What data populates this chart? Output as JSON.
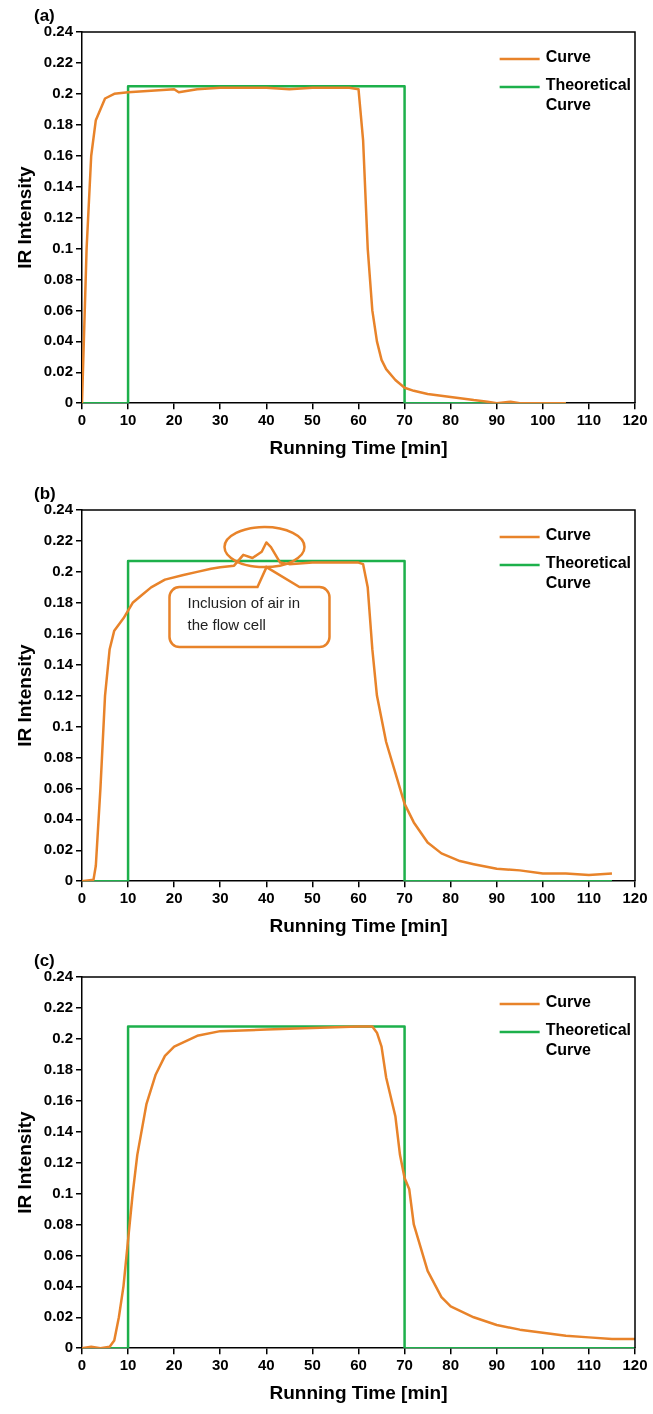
{
  "chart_data": [
    {
      "type": "line",
      "title": "(a)",
      "xlabel": "Running Time [min]",
      "ylabel": "IR Intensity",
      "xlim": [
        0,
        120
      ],
      "xticks": [
        0,
        10,
        20,
        30,
        40,
        50,
        60,
        70,
        80,
        90,
        100,
        110,
        120
      ],
      "ylim": [
        0,
        0.24
      ],
      "yticks": [
        0,
        0.02,
        0.04,
        0.06,
        0.08,
        0.1,
        0.12,
        0.14,
        0.16,
        0.18,
        0.2,
        0.22,
        0.24
      ],
      "grid": false,
      "legend": "top right",
      "marker": "none",
      "line_style": "solid",
      "series": [
        {
          "name": "Curve",
          "color": "#e8832a",
          "x": [
            0,
            1,
            2,
            3,
            5,
            7,
            10,
            15,
            20,
            21,
            25,
            30,
            40,
            45,
            50,
            55,
            58,
            60,
            61,
            62,
            63,
            64,
            65,
            66,
            68,
            70,
            72,
            75,
            80,
            85,
            88,
            90,
            93,
            95,
            105
          ],
          "values": [
            0,
            0.1,
            0.16,
            0.183,
            0.197,
            0.2,
            0.201,
            0.202,
            0.203,
            0.201,
            0.203,
            0.204,
            0.204,
            0.203,
            0.204,
            0.204,
            0.204,
            0.203,
            0.17,
            0.1,
            0.06,
            0.04,
            0.028,
            0.022,
            0.015,
            0.01,
            0.008,
            0.006,
            0.004,
            0.002,
            0.001,
            0,
            0.001,
            0,
            0
          ]
        },
        {
          "name": "Theoretical Curve",
          "color": "#1db04b",
          "x": [
            0,
            10,
            10,
            70,
            70,
            105
          ],
          "values": [
            0,
            0,
            0.205,
            0.205,
            0,
            0
          ]
        }
      ]
    },
    {
      "type": "line",
      "title": "(b)",
      "xlabel": "Running Time [min]",
      "ylabel": "IR Intensity",
      "xlim": [
        0,
        120
      ],
      "xticks": [
        0,
        10,
        20,
        30,
        40,
        50,
        60,
        70,
        80,
        90,
        100,
        110,
        120
      ],
      "ylim": [
        0,
        0.24
      ],
      "yticks": [
        0,
        0.02,
        0.04,
        0.06,
        0.08,
        0.1,
        0.12,
        0.14,
        0.16,
        0.18,
        0.2,
        0.22,
        0.24
      ],
      "grid": false,
      "legend": "top right",
      "marker": "none",
      "line_style": "solid",
      "annotations": [
        "Inclusion of air in the flow cell"
      ],
      "series": [
        {
          "name": "Curve",
          "color": "#e8832a",
          "x": [
            0,
            2.5,
            3,
            4,
            5,
            6,
            7,
            9,
            11,
            13,
            15,
            18,
            22,
            25,
            28,
            30,
            33,
            35,
            37,
            39,
            40,
            41,
            43,
            45,
            50,
            55,
            60,
            61,
            62,
            63,
            64,
            66,
            68,
            70,
            72,
            75,
            78,
            82,
            85,
            90,
            95,
            100,
            105,
            110,
            115
          ],
          "values": [
            0,
            0.001,
            0.01,
            0.06,
            0.12,
            0.15,
            0.162,
            0.17,
            0.18,
            0.185,
            0.19,
            0.195,
            0.198,
            0.2,
            0.202,
            0.203,
            0.204,
            0.211,
            0.209,
            0.213,
            0.219,
            0.216,
            0.206,
            0.205,
            0.206,
            0.206,
            0.206,
            0.205,
            0.19,
            0.15,
            0.12,
            0.09,
            0.07,
            0.05,
            0.038,
            0.025,
            0.018,
            0.013,
            0.011,
            0.008,
            0.007,
            0.005,
            0.005,
            0.004,
            0.005
          ]
        },
        {
          "name": "Theoretical Curve",
          "color": "#1db04b",
          "x": [
            0,
            10,
            10,
            70,
            70,
            115
          ],
          "values": [
            0,
            0,
            0.207,
            0.207,
            0,
            0
          ]
        }
      ]
    },
    {
      "type": "line",
      "title": "(c)",
      "xlabel": "Running Time [min]",
      "ylabel": "IR Intensity",
      "xlim": [
        0,
        120
      ],
      "xticks": [
        0,
        10,
        20,
        30,
        40,
        50,
        60,
        70,
        80,
        90,
        100,
        110,
        120
      ],
      "ylim": [
        0,
        0.24
      ],
      "yticks": [
        0,
        0.02,
        0.04,
        0.06,
        0.08,
        0.1,
        0.12,
        0.14,
        0.16,
        0.18,
        0.2,
        0.22,
        0.24
      ],
      "grid": false,
      "legend": "top right",
      "marker": "none",
      "line_style": "solid",
      "series": [
        {
          "name": "Curve",
          "color": "#e8832a",
          "x": [
            0,
            2,
            4,
            6,
            7,
            8,
            9,
            10,
            11,
            12,
            14,
            16,
            18,
            20,
            25,
            30,
            40,
            50,
            60,
            63,
            64,
            65,
            66,
            68,
            69,
            70,
            71,
            72,
            73,
            75,
            78,
            80,
            85,
            90,
            95,
            100,
            105,
            110,
            115,
            120
          ],
          "values": [
            0,
            0.001,
            0,
            0.001,
            0.005,
            0.02,
            0.04,
            0.07,
            0.1,
            0.125,
            0.158,
            0.177,
            0.189,
            0.195,
            0.202,
            0.205,
            0.206,
            0.207,
            0.208,
            0.208,
            0.204,
            0.195,
            0.175,
            0.15,
            0.125,
            0.11,
            0.103,
            0.08,
            0.07,
            0.05,
            0.033,
            0.027,
            0.02,
            0.015,
            0.012,
            0.01,
            0.008,
            0.007,
            0.006,
            0.006
          ]
        },
        {
          "name": "Theoretical Curve",
          "color": "#1db04b",
          "x": [
            0,
            10,
            10,
            70,
            70,
            120
          ],
          "values": [
            0,
            0,
            0.208,
            0.208,
            0,
            0
          ]
        }
      ]
    }
  ]
}
